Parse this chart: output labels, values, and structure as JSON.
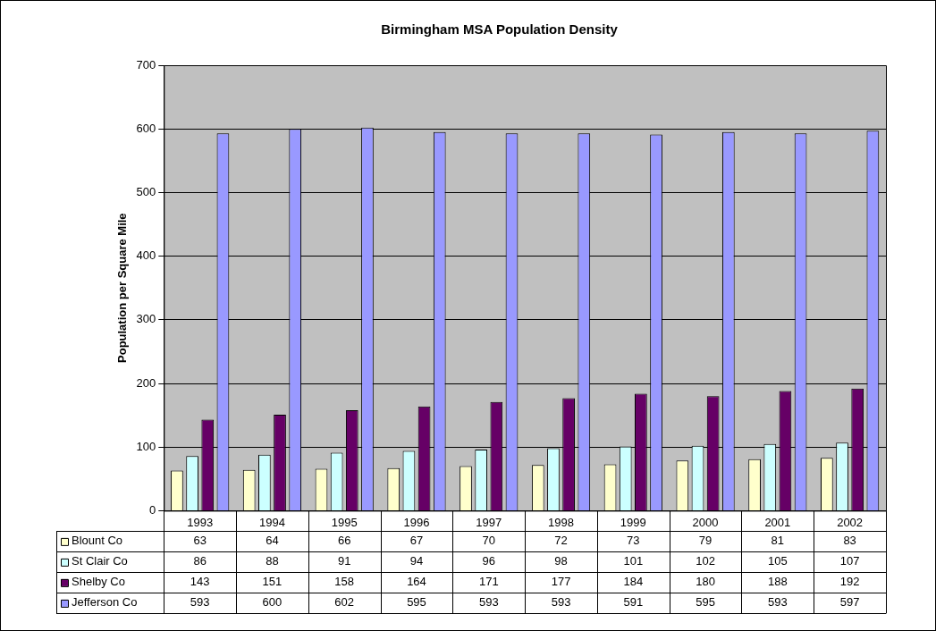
{
  "chart_data": {
    "type": "bar",
    "title": "Birmingham MSA Population Density",
    "ylabel": "Population per Square Mile",
    "categories": [
      "1993",
      "1994",
      "1995",
      "1996",
      "1997",
      "1998",
      "1999",
      "2000",
      "2001",
      "2002"
    ],
    "series": [
      {
        "name": "Blount Co",
        "color": "#ffffcc",
        "values": [
          63,
          64,
          66,
          67,
          70,
          72,
          73,
          79,
          81,
          83
        ]
      },
      {
        "name": "St Clair Co",
        "color": "#ccffff",
        "values": [
          86,
          88,
          91,
          94,
          96,
          98,
          101,
          102,
          105,
          107
        ]
      },
      {
        "name": "Shelby Co",
        "color": "#660066",
        "values": [
          143,
          151,
          158,
          164,
          171,
          177,
          184,
          180,
          188,
          192
        ]
      },
      {
        "name": "Jefferson Co",
        "color": "#9999ff",
        "values": [
          593,
          600,
          602,
          595,
          593,
          593,
          591,
          595,
          593,
          597
        ]
      }
    ],
    "ylim": [
      0,
      700
    ],
    "yticks": [
      0,
      100,
      200,
      300,
      400,
      500,
      600,
      700
    ],
    "grid": "y",
    "legend": "bottom",
    "data_labels": true
  }
}
